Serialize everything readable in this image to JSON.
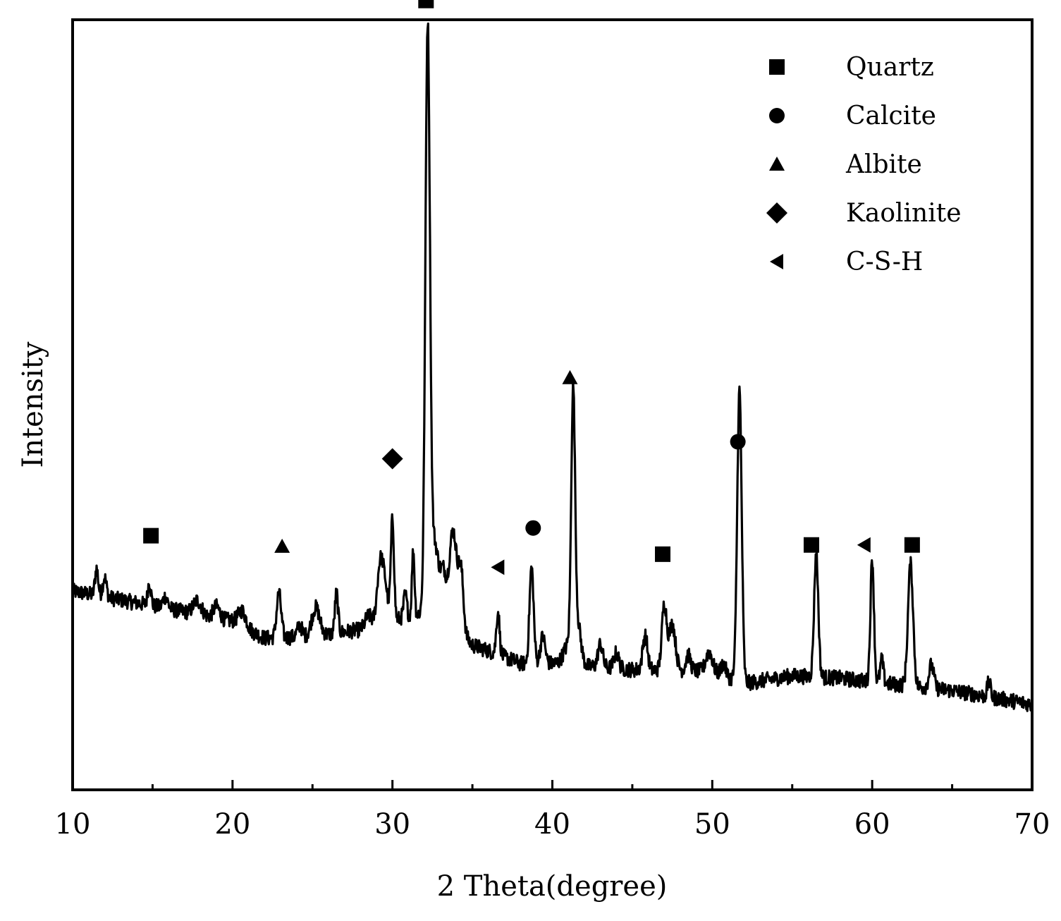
{
  "chart_data": {
    "type": "line",
    "title": "",
    "xlabel": "2 Theta(degree)",
    "ylabel": "Intensity",
    "xlim": [
      10,
      70
    ],
    "ylim": [
      0,
      100
    ],
    "x_ticks": [
      10,
      20,
      30,
      40,
      50,
      60,
      70
    ],
    "x_tick_labels": [
      "10",
      "20",
      "30",
      "40",
      "50",
      "60",
      "70"
    ],
    "y_tick_labels_shown": false,
    "grid": false,
    "legend_position": "top-right",
    "line_color": "#000000",
    "series": [
      {
        "noise": 1.0,
        "baseline": [
          [
            10,
            25.8
          ],
          [
            15,
            23.9
          ],
          [
            20,
            21.9
          ],
          [
            22,
            19.7
          ],
          [
            25,
            19.9
          ],
          [
            28,
            20.8
          ],
          [
            30,
            22.0
          ],
          [
            33,
            23.5
          ],
          [
            35,
            18.8
          ],
          [
            36.5,
            17.7
          ],
          [
            38,
            16.4
          ],
          [
            40,
            16.4
          ],
          [
            45,
            15.6
          ],
          [
            50,
            15.4
          ],
          [
            52,
            13.8
          ],
          [
            55,
            14.8
          ],
          [
            58,
            14.5
          ],
          [
            60,
            14.0
          ],
          [
            65,
            12.9
          ],
          [
            70,
            11.1
          ]
        ],
        "peaks": [
          [
            11.5,
            3.5,
            0.1
          ],
          [
            12.0,
            2.5,
            0.12
          ],
          [
            14.8,
            3.0,
            0.1
          ],
          [
            15.8,
            1.5,
            0.15
          ],
          [
            17.8,
            1.8,
            0.25
          ],
          [
            19.0,
            1.5,
            0.2
          ],
          [
            20.6,
            2.0,
            0.25
          ],
          [
            22.9,
            5.8,
            0.14
          ],
          [
            24.2,
            1.5,
            0.15
          ],
          [
            25.2,
            3.7,
            0.25
          ],
          [
            26.5,
            5.2,
            0.1
          ],
          [
            28.5,
            1.5,
            0.2
          ],
          [
            29.2,
            6.5,
            0.18
          ],
          [
            29.5,
            5.0,
            0.2
          ],
          [
            30.0,
            13.0,
            0.1
          ],
          [
            30.8,
            3.0,
            0.1
          ],
          [
            31.3,
            8.5,
            0.08
          ],
          [
            32.2,
            73.0,
            0.14
          ],
          [
            32.6,
            9.0,
            0.3
          ],
          [
            33.2,
            4.0,
            0.15
          ],
          [
            33.8,
            12.0,
            0.25
          ],
          [
            34.3,
            7.0,
            0.15
          ],
          [
            36.6,
            5.5,
            0.1
          ],
          [
            38.7,
            12.5,
            0.13
          ],
          [
            39.4,
            3.5,
            0.15
          ],
          [
            41.0,
            2.5,
            0.3
          ],
          [
            41.3,
            33.2,
            0.12
          ],
          [
            41.6,
            5.0,
            0.2
          ],
          [
            43.0,
            3.0,
            0.15
          ],
          [
            44.0,
            2.0,
            0.15
          ],
          [
            45.8,
            4.5,
            0.15
          ],
          [
            47.0,
            8.5,
            0.15
          ],
          [
            47.5,
            6.0,
            0.2
          ],
          [
            48.5,
            2.0,
            0.15
          ],
          [
            49.8,
            2.5,
            0.2
          ],
          [
            50.7,
            1.5,
            0.15
          ],
          [
            51.7,
            37.8,
            0.14
          ],
          [
            56.5,
            16.0,
            0.13
          ],
          [
            60.0,
            16.0,
            0.11
          ],
          [
            60.6,
            3.0,
            0.1
          ],
          [
            62.4,
            15.8,
            0.16
          ],
          [
            63.7,
            3.0,
            0.15
          ],
          [
            67.3,
            2.0,
            0.1
          ]
        ]
      }
    ],
    "markers": [
      {
        "x": 14.9,
        "y": 33.0,
        "shape": "square"
      },
      {
        "x": 23.1,
        "y": 31.6,
        "shape": "triangle"
      },
      {
        "x": 30.0,
        "y": 43.0,
        "shape": "diamond"
      },
      {
        "x": 32.1,
        "y": 102.5,
        "shape": "square"
      },
      {
        "x": 36.6,
        "y": 28.9,
        "shape": "left-triangle"
      },
      {
        "x": 38.8,
        "y": 34.0,
        "shape": "circle"
      },
      {
        "x": 41.1,
        "y": 53.5,
        "shape": "triangle"
      },
      {
        "x": 46.9,
        "y": 30.6,
        "shape": "square"
      },
      {
        "x": 51.6,
        "y": 45.2,
        "shape": "circle"
      },
      {
        "x": 56.2,
        "y": 31.8,
        "shape": "square"
      },
      {
        "x": 59.5,
        "y": 31.8,
        "shape": "left-triangle"
      },
      {
        "x": 62.5,
        "y": 31.8,
        "shape": "square"
      }
    ],
    "legend": [
      {
        "shape": "square",
        "label": "Quartz"
      },
      {
        "shape": "circle",
        "label": "Calcite"
      },
      {
        "shape": "triangle",
        "label": "Albite"
      },
      {
        "shape": "diamond",
        "label": "Kaolinite"
      },
      {
        "shape": "left-triangle",
        "label": "C-S-H"
      }
    ]
  }
}
